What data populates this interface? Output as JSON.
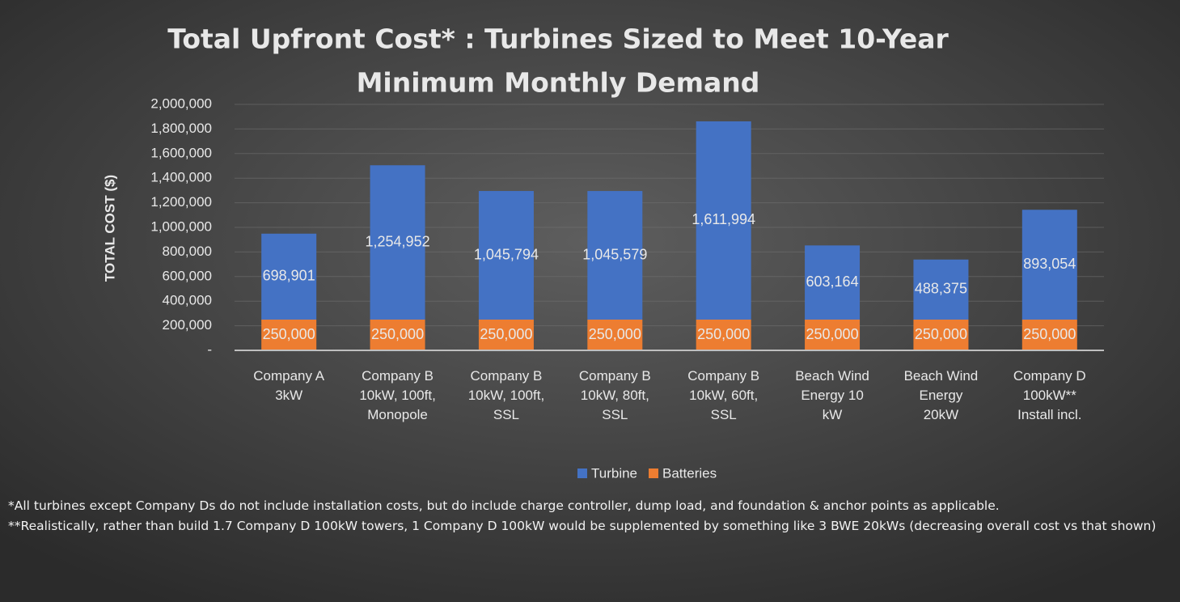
{
  "chart_data": {
    "type": "stacked_bar",
    "title": [
      "Total Upfront Cost* : Turbines Sized to Meet 10-Year",
      "Minimum Monthly Demand"
    ],
    "y_label": "TOTAL COST ($)",
    "categories": [
      [
        "Company A",
        "3kW"
      ],
      [
        "Company B",
        "10kW, 100ft,",
        "Monopole"
      ],
      [
        "Company B",
        "10kW, 100ft,",
        "SSL"
      ],
      [
        "Company B",
        "10kW, 80ft,",
        "SSL"
      ],
      [
        "Company B",
        "10kW, 60ft,",
        "SSL"
      ],
      [
        "Beach Wind",
        "Energy 10",
        "kW"
      ],
      [
        "Beach Wind",
        "Energy",
        "20kW"
      ],
      [
        "Company D",
        "100kW**",
        "Install incl."
      ]
    ],
    "series": [
      {
        "name": "Turbine",
        "color": "#4472c4",
        "values": [
          698901,
          1254952,
          1045794,
          1045579,
          1611994,
          603164,
          488375,
          893054
        ],
        "value_labels": [
          "698,901",
          "1,254,952",
          "1,045,794",
          "1,045,579",
          "1,611,994",
          "603,164",
          "488,375",
          "893,054"
        ]
      },
      {
        "name": "Batteries",
        "color": "#ed7d31",
        "values": [
          250000,
          250000,
          250000,
          250000,
          250000,
          250000,
          250000,
          250000
        ],
        "value_labels": [
          "250,000",
          "250,000",
          "250,000",
          "250,000",
          "250,000",
          "250,000",
          "250,000",
          "250,000"
        ]
      }
    ],
    "ylim": [
      0,
      2000000
    ],
    "yticks": [
      {
        "value": 0,
        "label": "-"
      },
      {
        "value": 200000,
        "label": "200,000"
      },
      {
        "value": 400000,
        "label": "400,000"
      },
      {
        "value": 600000,
        "label": "600,000"
      },
      {
        "value": 800000,
        "label": "800,000"
      },
      {
        "value": 1000000,
        "label": "1,000,000"
      },
      {
        "value": 1200000,
        "label": "1,200,000"
      },
      {
        "value": 1400000,
        "label": "1,400,000"
      },
      {
        "value": 1600000,
        "label": "1,600,000"
      },
      {
        "value": 1800000,
        "label": "1,800,000"
      },
      {
        "value": 2000000,
        "label": "2,000,000"
      }
    ],
    "grid": true,
    "legend": "bottom",
    "notes": [
      "*All turbines except Company Ds do not include installation costs, but do include charge controller, dump load, and foundation & anchor points as applicable.",
      "**Realistically, rather than build 1.7 Company D 100kW towers, 1 Company D 100kW would be supplemented by something like 3 BWE 20kWs (decreasing overall cost vs that shown)"
    ]
  }
}
